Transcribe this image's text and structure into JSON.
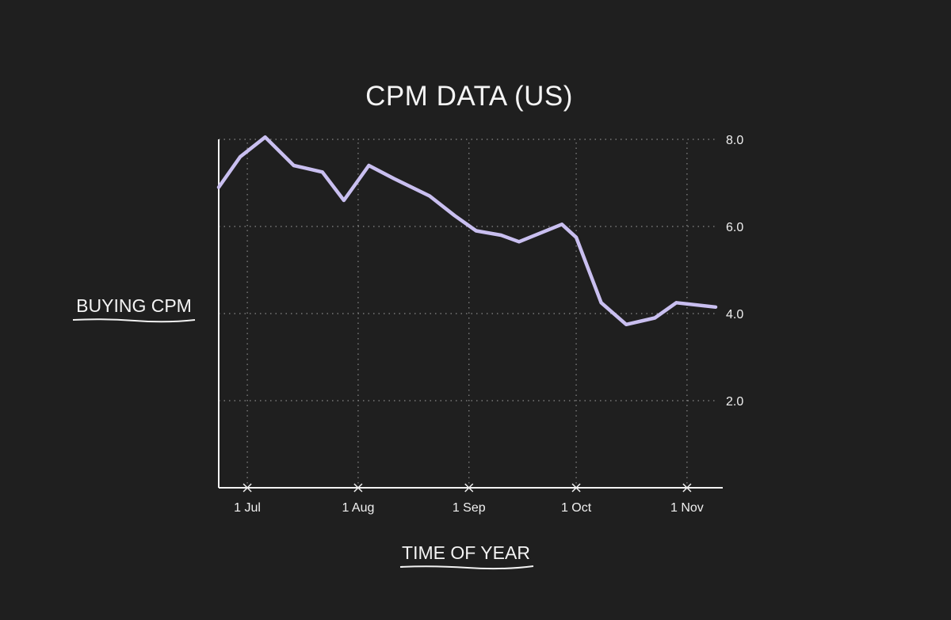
{
  "chart_data": {
    "type": "line",
    "title": "CPM DATA (US)",
    "xlabel": "TIME OF YEAR",
    "ylabel": "BUYING CPM",
    "x_tick_labels": [
      "1 Jul",
      "1 Aug",
      "1 Sep",
      "1 Oct",
      "1 Nov"
    ],
    "y_tick_labels": [
      "8.0",
      "6.0",
      "4.0",
      "2.0"
    ],
    "y_ticks": [
      8,
      6,
      4,
      2
    ],
    "ylim": [
      0,
      8
    ],
    "xlim": [
      "2023-06-23",
      "2023-11-11"
    ],
    "y_axis_position": "right",
    "grid": true,
    "line_color": "#c9bff0",
    "series": [
      {
        "x": [
          "2023-06-23",
          "2023-06-29",
          "2023-07-06",
          "2023-07-14",
          "2023-07-22",
          "2023-07-28",
          "2023-08-04",
          "2023-08-11",
          "2023-08-21",
          "2023-08-28",
          "2023-09-03",
          "2023-09-10",
          "2023-09-15",
          "2023-09-27",
          "2023-10-01",
          "2023-10-08",
          "2023-10-15",
          "2023-10-23",
          "2023-10-29",
          "2023-11-09"
        ],
        "y": [
          6.9,
          7.6,
          8.05,
          7.4,
          7.25,
          6.6,
          7.4,
          7.1,
          6.7,
          6.25,
          5.9,
          5.8,
          5.65,
          6.05,
          5.75,
          4.25,
          3.75,
          3.9,
          4.25,
          4.15
        ]
      }
    ]
  }
}
